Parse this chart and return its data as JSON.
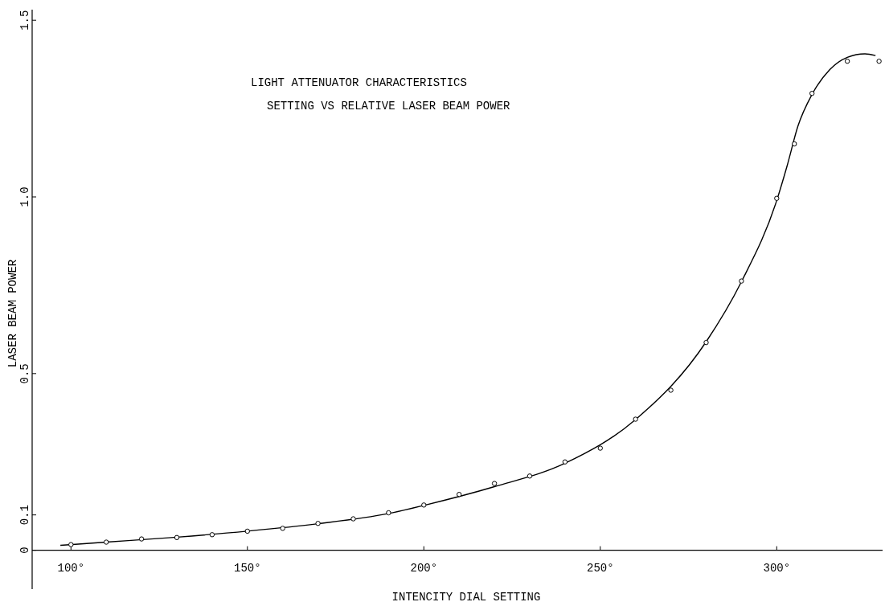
{
  "chart_data": {
    "type": "scatter",
    "title": "LIGHT ATTENUATOR CHARACTERISTICS",
    "subtitle": "SETTING VS RELATIVE LASER BEAM POWER",
    "xlabel": "INTENCITY DIAL SETTING",
    "ylabel": "LASER BEAM POWER",
    "xlim": [
      89,
      330
    ],
    "ylim": [
      -0.11,
      1.53
    ],
    "xticks": [
      {
        "value": 100,
        "label": "100°"
      },
      {
        "value": 150,
        "label": "150°"
      },
      {
        "value": 200,
        "label": "200°"
      },
      {
        "value": 250,
        "label": "250°"
      },
      {
        "value": 300,
        "label": "300°"
      }
    ],
    "yticks": [
      0,
      0.1,
      0.5,
      {
        "value": 1,
        "label": "1.0"
      },
      1.5
    ],
    "grid": false,
    "series": [
      {
        "color": "#000000",
        "marker": "circle",
        "x": [
          100,
          110,
          120,
          130,
          140,
          150,
          160,
          170,
          180,
          190,
          200,
          210,
          220,
          230,
          240,
          250,
          260,
          270,
          280,
          290,
          300,
          305,
          310,
          320,
          329
        ],
        "values": [
          0.016,
          0.023,
          0.032,
          0.036,
          0.044,
          0.054,
          0.062,
          0.076,
          0.089,
          0.106,
          0.128,
          0.158,
          0.189,
          0.21,
          0.25,
          0.289,
          0.371,
          0.453,
          0.588,
          0.762,
          0.996,
          1.15,
          1.293,
          1.384,
          1.384
        ]
      },
      {
        "type": "line",
        "color": "#000000",
        "marker": "none",
        "line_style": "solid",
        "x": [
          97,
          110,
          130,
          150,
          170,
          190,
          200,
          220,
          240,
          260,
          280,
          290,
          300,
          303,
          306,
          310,
          315,
          320,
          325,
          328
        ],
        "values": [
          0.014,
          0.023,
          0.037,
          0.054,
          0.075,
          0.104,
          0.127,
          0.18,
          0.246,
          0.37,
          0.59,
          0.76,
          0.99,
          1.09,
          1.2,
          1.29,
          1.36,
          1.395,
          1.405,
          1.4
        ]
      }
    ]
  }
}
